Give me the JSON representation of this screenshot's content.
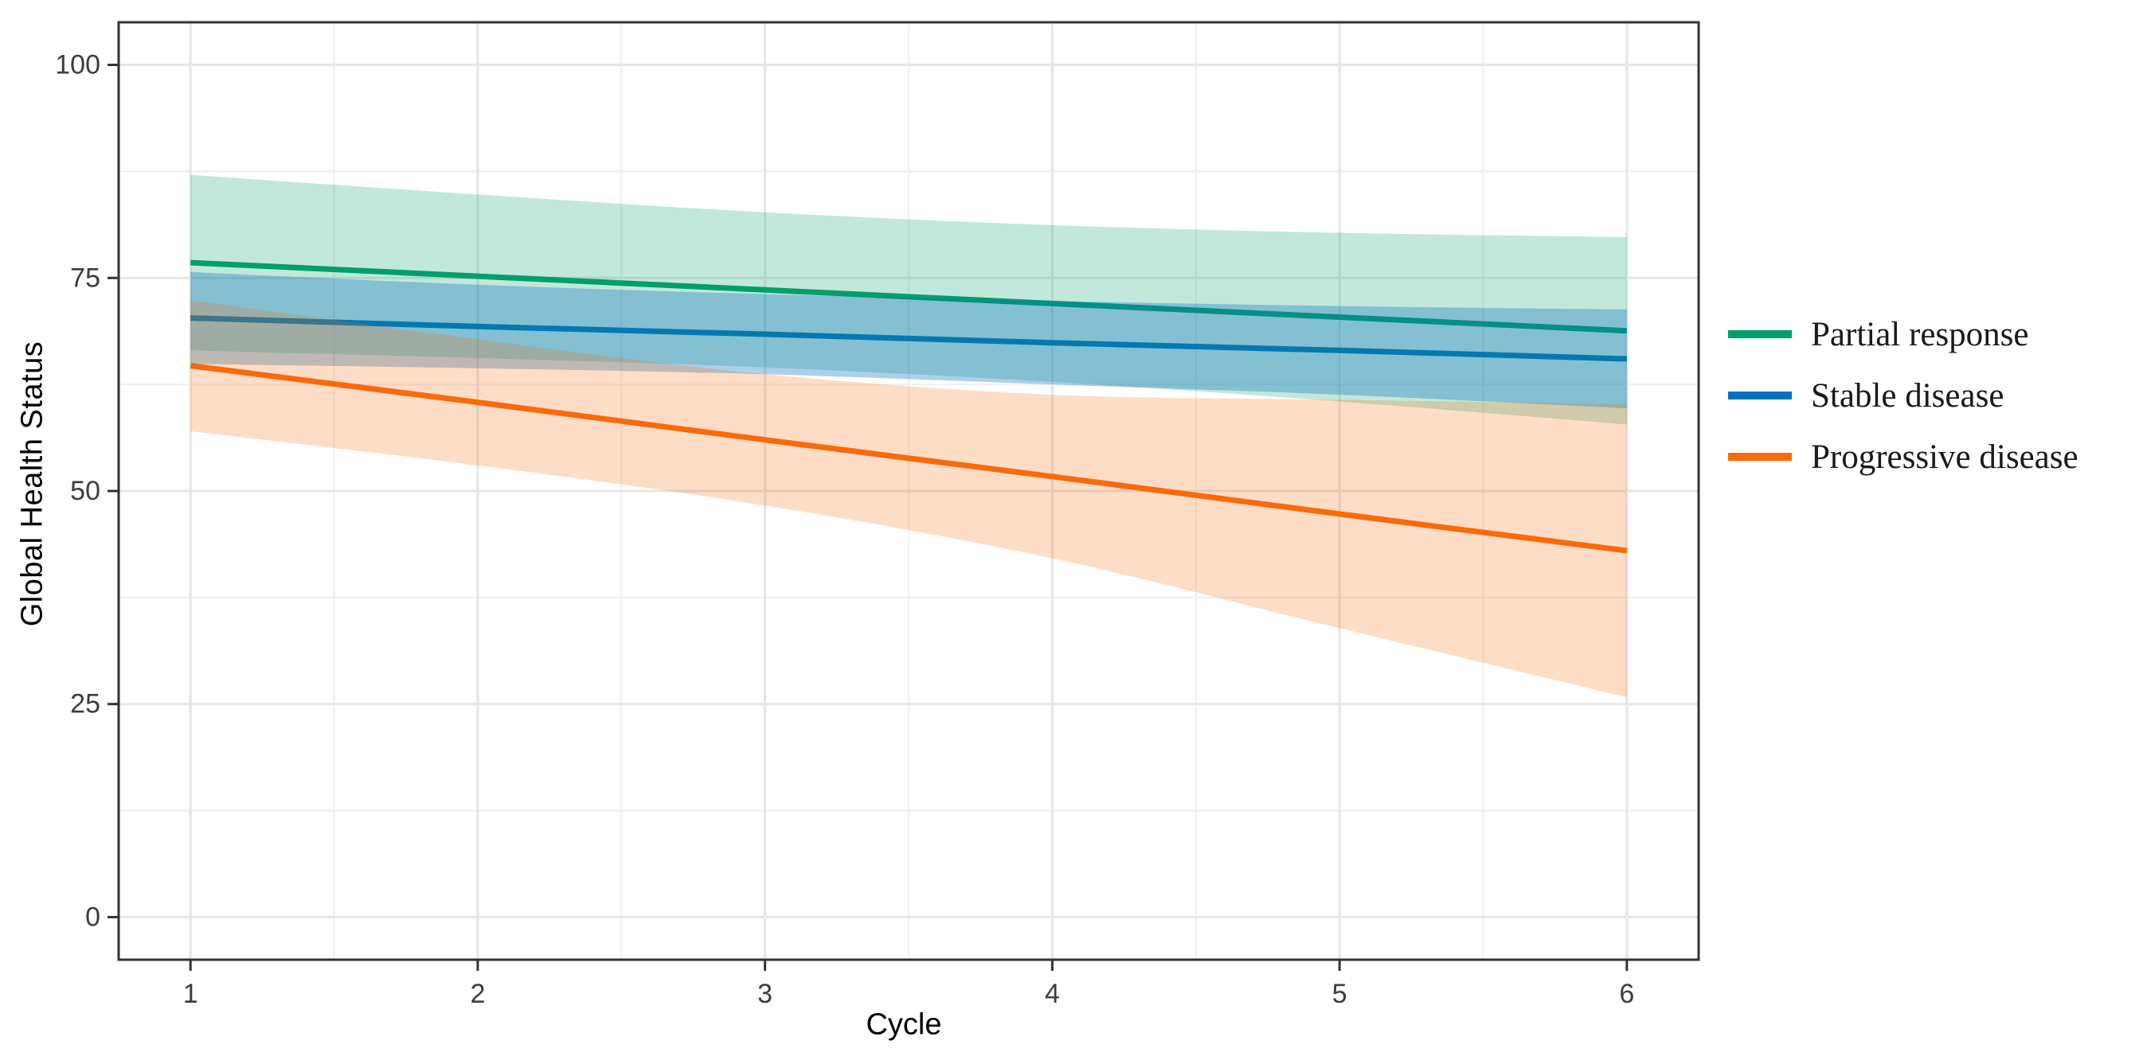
{
  "page": {
    "background": "#FFFFFF"
  },
  "chart_data": {
    "type": "line",
    "title": "",
    "xlabel": "Cycle",
    "ylabel": "Global Health Status",
    "x": [
      1,
      2,
      3,
      4,
      5,
      6
    ],
    "x_ticks": {
      "values": [
        1,
        2,
        3,
        4,
        5,
        6
      ],
      "labels": [
        "1",
        "2",
        "3",
        "4",
        "5",
        "6"
      ],
      "minor": [
        1.5,
        2.5,
        3.5,
        4.5,
        5.5
      ]
    },
    "y_ticks": {
      "values": [
        0,
        25,
        50,
        75,
        100
      ],
      "labels": [
        "0",
        "25",
        "50",
        "75",
        "100"
      ],
      "minor": [
        12.5,
        37.5,
        62.5,
        87.5
      ]
    },
    "xlim": [
      0.75,
      6.25
    ],
    "ylim": [
      -5,
      105
    ],
    "grid": {
      "major_color": "#E6E6E6",
      "minor_color": "#F1F1F1"
    },
    "panel": {
      "border_color": "#333333",
      "tick_color": "#333333",
      "background": "#FFFFFF"
    },
    "axis_text_color": "#3D3D3D",
    "axis_title_color": "#000000",
    "legend_position": "right",
    "series": [
      {
        "name": "Partial response",
        "color": "#009E6B",
        "fill_alpha": 0.24,
        "values": [
          76.8,
          75.2,
          73.6,
          72.0,
          70.4,
          68.8
        ],
        "ci_upper": [
          87.1,
          84.8,
          82.7,
          81.2,
          80.3,
          79.8
        ],
        "ci_lower": [
          66.5,
          65.6,
          64.5,
          62.8,
          60.5,
          57.8
        ]
      },
      {
        "name": "Stable disease",
        "color": "#0571BE",
        "fill_alpha": 0.33,
        "values": [
          70.3,
          69.3,
          68.4,
          67.4,
          66.5,
          65.5
        ],
        "ci_upper": [
          75.7,
          74.2,
          73.1,
          72.3,
          71.7,
          71.3
        ],
        "ci_lower": [
          64.9,
          64.4,
          63.7,
          62.5,
          61.3,
          59.7
        ]
      },
      {
        "name": "Progressive disease",
        "color": "#F96A08",
        "fill_alpha": 0.23,
        "values": [
          64.7,
          60.4,
          56.0,
          51.7,
          47.3,
          43.0
        ],
        "ci_upper": [
          72.4,
          67.8,
          63.7,
          61.3,
          60.7,
          60.2
        ],
        "ci_lower": [
          57.0,
          53.0,
          48.3,
          42.1,
          33.9,
          25.8
        ]
      }
    ]
  }
}
